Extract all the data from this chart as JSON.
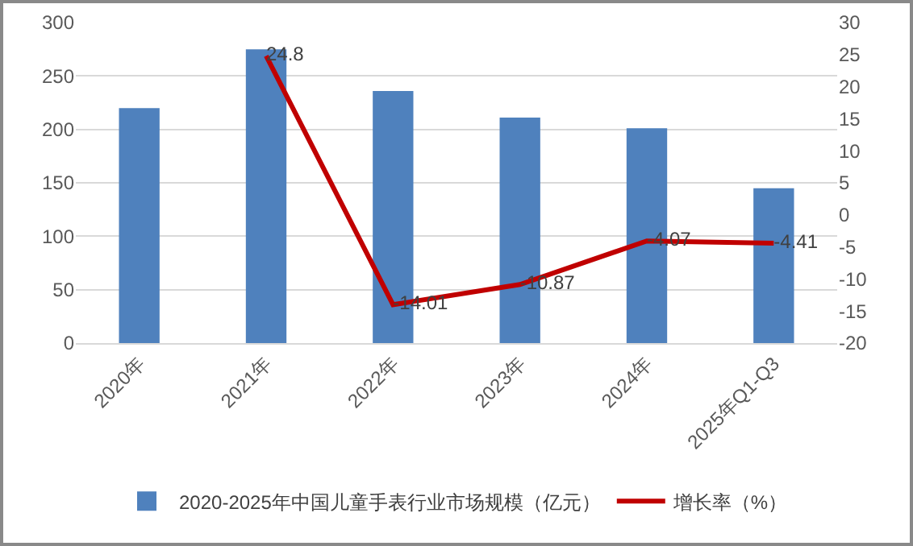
{
  "chart_data": {
    "type": "bar",
    "categories": [
      "2020年",
      "2021年",
      "2022年",
      "2023年",
      "2024年",
      "2025年Q1-Q3"
    ],
    "series": [
      {
        "name": "2020-2025年中国儿童手表行业市场规模（亿元）",
        "color": "#4f81bd",
        "values": [
          220,
          275,
          236,
          211,
          201,
          145
        ]
      },
      {
        "name": "增长率（%）",
        "type": "line",
        "axis": "y2",
        "color": "#c00000",
        "values": [
          null,
          24.8,
          -14.01,
          -10.87,
          -4.07,
          -4.41
        ],
        "data_labels": true
      }
    ],
    "ylim": [
      0,
      300
    ],
    "yticks": [
      0,
      50,
      100,
      150,
      200,
      250,
      300
    ],
    "y2lim": [
      -20,
      30
    ],
    "y2ticks": [
      -20,
      -15,
      -10,
      -5,
      0,
      5,
      10,
      15,
      20,
      25,
      30
    ],
    "grid": "y",
    "legend": "bottom",
    "marker": "none"
  }
}
